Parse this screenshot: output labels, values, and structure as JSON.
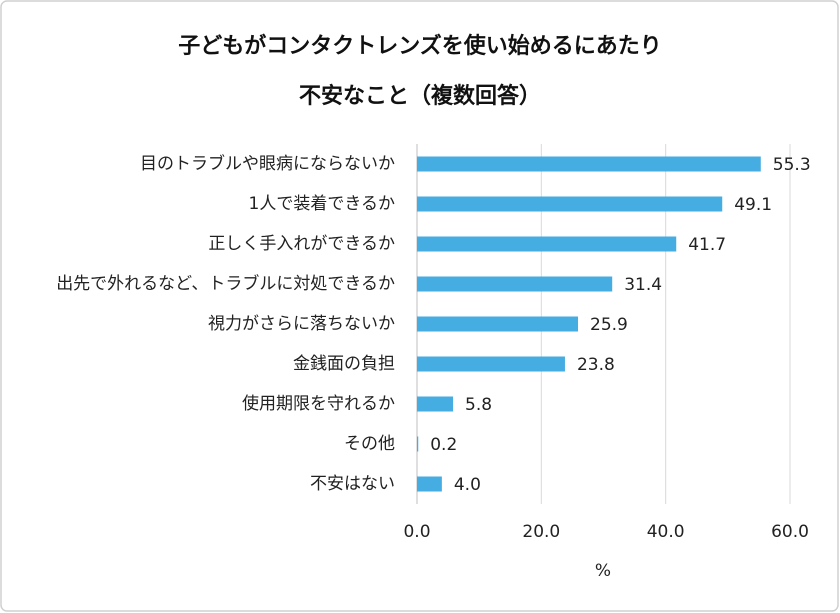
{
  "chart_data": {
    "type": "bar",
    "orientation": "horizontal",
    "title": [
      "子どもがコンタクトレンズを使い始めるにあたり",
      "不安なこと（複数回答）"
    ],
    "x_label": "%",
    "categories": [
      "目のトラブルや眼病にならないか",
      "1人で装着できるか",
      "正しく手入れができるか",
      "出先で外れるなど、トラブルに対処できるか",
      "視力がさらに落ちないか",
      "金銭面の負担",
      "使用期限を守れるか",
      "その他",
      "不安はない"
    ],
    "values": [
      55.3,
      49.1,
      41.7,
      31.4,
      25.9,
      23.8,
      5.8,
      0.2,
      4.0
    ],
    "value_labels": [
      "55.3",
      "49.1",
      "41.7",
      "31.4",
      "25.9",
      "23.8",
      "5.8",
      "0.2",
      "4.0"
    ],
    "color": "#45ade1",
    "xlim": [
      0,
      60
    ],
    "xticks": [
      {
        "value": 0,
        "label": "0.0"
      },
      {
        "value": 20,
        "label": "20.0"
      },
      {
        "value": 40,
        "label": "40.0"
      },
      {
        "value": 60,
        "label": "60.0"
      }
    ],
    "grid": true
  }
}
